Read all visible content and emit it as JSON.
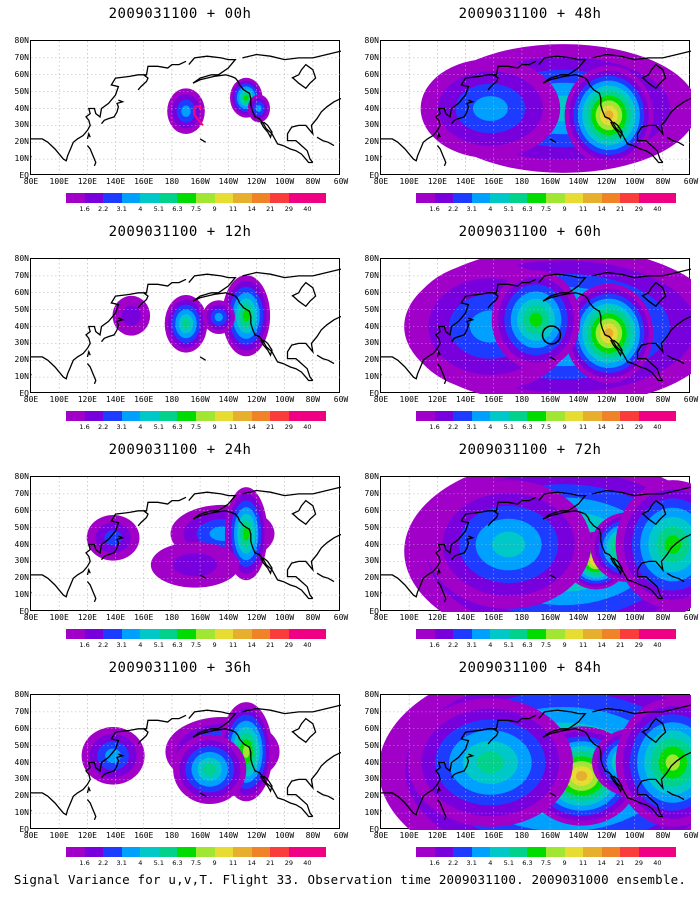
{
  "caption": "Signal Variance for u,v,T. Flight 33. Observation time 2009031100. 2009031000 ensemble.",
  "panels": [
    {
      "title": "2009031100 + 00h",
      "lead_h": 0,
      "blobs": [
        [
          0.85,
          0.32,
          0.05,
          0.06,
          0.3
        ],
        [
          1.18,
          0.22,
          0.04,
          0.05,
          0.5
        ],
        [
          1.25,
          0.3,
          0.02,
          0.03,
          0.3
        ]
      ],
      "track": true,
      "circle": false
    },
    {
      "title": "2009031100 + 12h",
      "lead_h": 12,
      "blobs": [
        [
          0.85,
          0.28,
          0.06,
          0.08,
          0.45
        ],
        [
          1.18,
          0.22,
          0.07,
          0.12,
          0.5
        ],
        [
          0.55,
          0.22,
          0.05,
          0.05,
          0.15
        ],
        [
          1.03,
          0.23,
          0.04,
          0.04,
          0.3
        ]
      ],
      "track": false,
      "circle": false
    },
    {
      "title": "2009031100 + 24h",
      "lead_h": 24,
      "blobs": [
        [
          1.05,
          0.22,
          0.18,
          0.08,
          0.3
        ],
        [
          1.18,
          0.22,
          0.06,
          0.14,
          0.5
        ],
        [
          0.45,
          0.25,
          0.08,
          0.06,
          0.2
        ],
        [
          0.9,
          0.45,
          0.15,
          0.06,
          0.15
        ]
      ],
      "track": false,
      "circle": false
    },
    {
      "title": "2009031100 + 36h",
      "lead_h": 36,
      "blobs": [
        [
          1.05,
          0.22,
          0.2,
          0.1,
          0.4
        ],
        [
          1.18,
          0.22,
          0.08,
          0.15,
          0.6
        ],
        [
          0.45,
          0.25,
          0.1,
          0.08,
          0.3
        ],
        [
          0.98,
          0.35,
          0.12,
          0.1,
          0.45
        ]
      ],
      "track": false,
      "circle": false
    },
    {
      "title": "2009031100 + 48h",
      "lead_h": 48,
      "blobs": [
        [
          1.0,
          0.3,
          0.5,
          0.2,
          0.4
        ],
        [
          1.25,
          0.35,
          0.15,
          0.15,
          0.8
        ],
        [
          0.6,
          0.3,
          0.25,
          0.15,
          0.3
        ]
      ],
      "track": false,
      "circle": false
    },
    {
      "title": "2009031100 + 60h",
      "lead_h": 60,
      "blobs": [
        [
          1.0,
          0.3,
          0.6,
          0.25,
          0.45
        ],
        [
          1.25,
          0.35,
          0.15,
          0.15,
          0.8
        ],
        [
          0.6,
          0.3,
          0.3,
          0.2,
          0.3
        ],
        [
          0.85,
          0.25,
          0.15,
          0.15,
          0.5
        ]
      ],
      "track": false,
      "circle": true
    },
    {
      "title": "2009031100 + 72h",
      "lead_h": 72,
      "blobs": [
        [
          1.0,
          0.35,
          0.6,
          0.3,
          0.5
        ],
        [
          1.18,
          0.42,
          0.1,
          0.08,
          0.8
        ],
        [
          1.35,
          0.32,
          0.12,
          0.1,
          0.7
        ],
        [
          0.7,
          0.3,
          0.3,
          0.2,
          0.4
        ],
        [
          1.6,
          0.3,
          0.2,
          0.2,
          0.5
        ]
      ],
      "track": false,
      "circle": false
    },
    {
      "title": "2009031100 + 84h",
      "lead_h": 84,
      "blobs": [
        [
          1.0,
          0.35,
          0.7,
          0.35,
          0.55
        ],
        [
          1.1,
          0.4,
          0.2,
          0.15,
          0.8
        ],
        [
          1.4,
          0.3,
          0.15,
          0.1,
          0.7
        ],
        [
          1.6,
          0.3,
          0.2,
          0.2,
          0.6
        ],
        [
          0.6,
          0.3,
          0.3,
          0.2,
          0.45
        ]
      ],
      "track": false,
      "circle": false
    }
  ],
  "lat_labels": [
    "80N",
    "70N",
    "60N",
    "50N",
    "40N",
    "30N",
    "20N",
    "10N",
    "EQ"
  ],
  "lon_labels": [
    "80E",
    "100E",
    "120E",
    "140E",
    "160E",
    "180",
    "160W",
    "140W",
    "120W",
    "100W",
    "80W",
    "60W"
  ],
  "colorbar": {
    "labels": [
      "1.6",
      "2.2",
      "3.1",
      "4",
      "5.1",
      "6.3",
      "7.5",
      "9",
      "11",
      "14",
      "21",
      "29",
      "40"
    ],
    "colors": [
      "#a000c8",
      "#7800dc",
      "#1e3cff",
      "#00a0ff",
      "#00c8c8",
      "#00d28c",
      "#00dc00",
      "#a0e632",
      "#e6dc32",
      "#e6af2d",
      "#f08228",
      "#fa3c3c",
      "#f00082"
    ]
  },
  "chart_data": {
    "type": "heatmap",
    "title": "Signal Variance for u,v,T. Flight 33. Observation time 2009031100. 2009031000 ensemble.",
    "xlim": [
      "80E",
      "60W"
    ],
    "ylim": [
      "EQ",
      "80N"
    ],
    "lead_times_h": [
      0,
      12,
      24,
      36,
      48,
      60,
      72,
      84
    ],
    "contour_levels": [
      1.6,
      2.2,
      3.1,
      4,
      5.1,
      6.3,
      7.5,
      9,
      11,
      14,
      21,
      29,
      40
    ]
  }
}
